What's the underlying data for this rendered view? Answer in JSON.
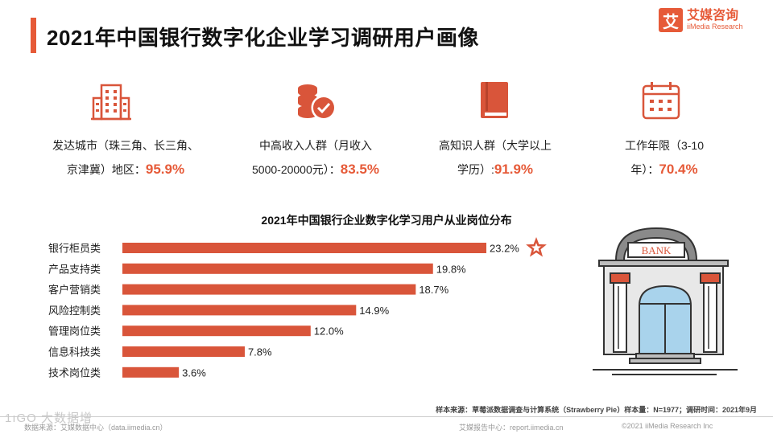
{
  "header": {
    "title": "2021年中国银行数字化企业学习调研用户画像",
    "logo_mark": "艾",
    "logo_cn": "艾媒咨询",
    "logo_en": "iiMedia Research"
  },
  "stats": [
    {
      "icon": "building-icon",
      "line1": "发达城市（珠三角、长三角、",
      "line2": "京津冀）地区：",
      "pct": "95.9%"
    },
    {
      "icon": "coins-icon",
      "line1": "中高收入人群（月收入",
      "line2": "5000-20000元）：",
      "pct": "83.5%"
    },
    {
      "icon": "book-icon",
      "line1": "高知识人群（大学以上",
      "line2": "学历）:",
      "pct": "91.9%"
    },
    {
      "icon": "calendar-icon",
      "line1": "工作年限（3-10",
      "line2": "年）：",
      "pct": "70.4%"
    }
  ],
  "chart_data": {
    "type": "bar",
    "orientation": "horizontal",
    "title": "2021年中国银行企业数字化学习用户从业岗位分布",
    "categories": [
      "银行柜员类",
      "产品支持类",
      "客户营销类",
      "风险控制类",
      "管理岗位类",
      "信息科技类",
      "技术岗位类"
    ],
    "values": [
      23.2,
      19.8,
      18.7,
      14.9,
      12.0,
      7.8,
      3.6
    ],
    "value_labels": [
      "23.2%",
      "19.8%",
      "18.7%",
      "14.9%",
      "12.0%",
      "7.8%",
      "3.6%"
    ],
    "xlim": [
      0,
      25
    ],
    "highlight_index": 0,
    "bar_color": "#d9553a"
  },
  "illustration": {
    "sign_text": "BANK"
  },
  "footer": {
    "source": "样本来源：草莓派数据调查与计算系统（Strawberry Pie）样本量：N=1977；调研时间：2021年9月",
    "data_source": "数据来源：艾媒数据中心（data.iimedia.cn）",
    "report_center": "艾媒报告中心：report.iimedia.cn",
    "copyright": "©2021  iiMedia Research  Inc",
    "watermark": "1ıGO 大数据增"
  }
}
